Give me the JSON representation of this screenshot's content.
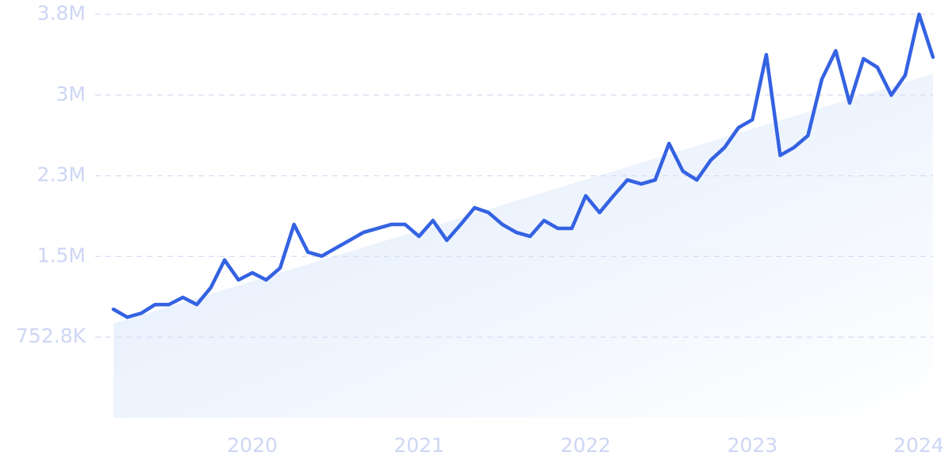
{
  "chart_data": {
    "type": "line",
    "color": "#3462e2",
    "grid": true,
    "categories": [
      null,
      null,
      null,
      null,
      null,
      null,
      null,
      null,
      null,
      null,
      "2020",
      null,
      null,
      null,
      null,
      null,
      null,
      null,
      null,
      null,
      null,
      null,
      "2021",
      null,
      null,
      null,
      null,
      null,
      null,
      null,
      null,
      null,
      null,
      null,
      "2022",
      null,
      null,
      null,
      null,
      null,
      null,
      null,
      null,
      null,
      null,
      null,
      "2023",
      null,
      null,
      null,
      null,
      null,
      null,
      null,
      null,
      null,
      null,
      null,
      "2024",
      null
    ],
    "values": [
      1013000,
      939000,
      976000,
      1057000,
      1057000,
      1124000,
      1057000,
      1213000,
      1472000,
      1287000,
      1353000,
      1287000,
      1398000,
      1804000,
      1546000,
      1509000,
      1583000,
      1656000,
      1730000,
      1767000,
      1804000,
      1804000,
      1693000,
      1841000,
      1656000,
      1804000,
      1960000,
      1915000,
      1804000,
      1730000,
      1693000,
      1841000,
      1767000,
      1767000,
      2071000,
      1915000,
      2071000,
      2219000,
      2182000,
      2219000,
      2559000,
      2300000,
      2219000,
      2403000,
      2522000,
      2707000,
      2781000,
      3387000,
      2448000,
      2522000,
      2633000,
      3158000,
      3424000,
      2936000,
      3350000,
      3269000,
      3010000,
      3195000,
      3764000,
      3365000
    ],
    "trend": {
      "values": [
        880000,
        3209000
      ],
      "color": "#dce9fb"
    },
    "ylim": [
      0,
      3764000
    ],
    "yticks": [
      {
        "value": 752800,
        "label": "752.8K"
      },
      {
        "value": 1505600,
        "label": "1.5M"
      },
      {
        "value": 2258400,
        "label": "2.3M"
      },
      {
        "value": 3011200,
        "label": "3M"
      },
      {
        "value": 3764000,
        "label": "3.8M"
      }
    ]
  }
}
